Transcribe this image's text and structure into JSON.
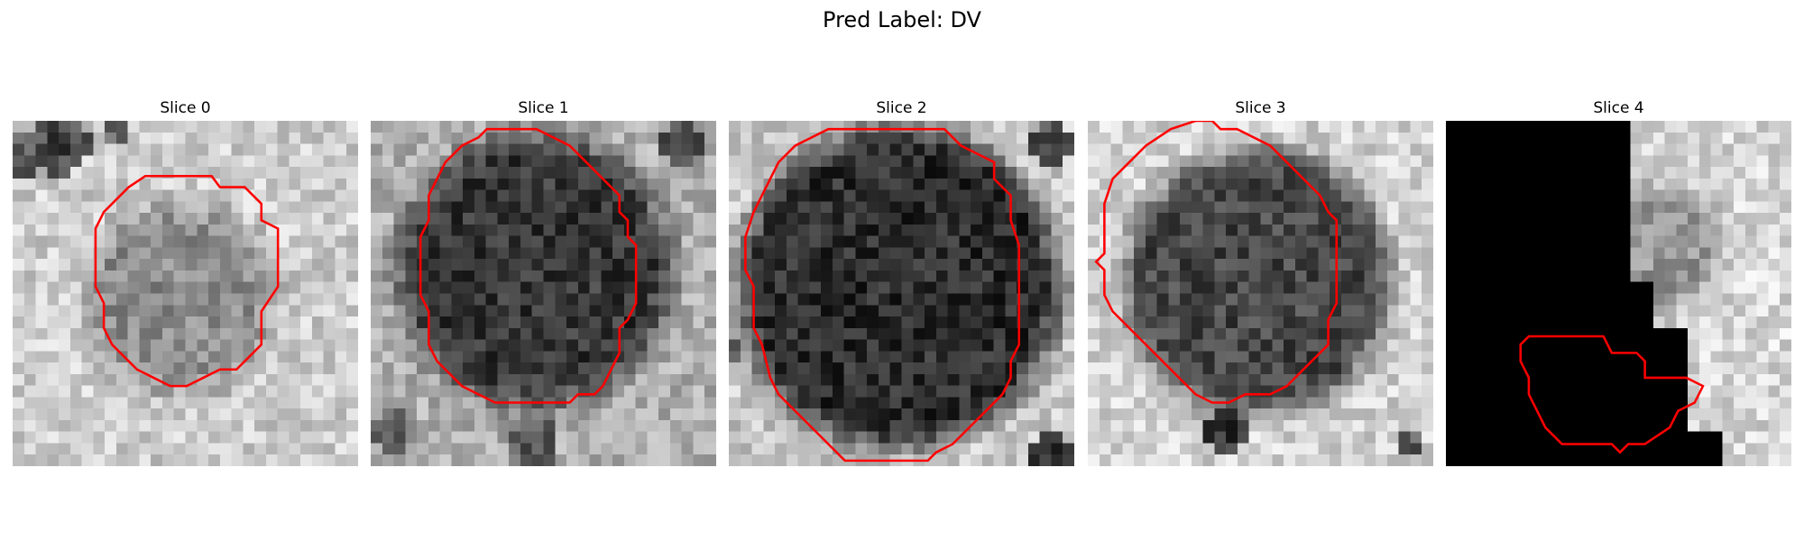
{
  "title": "Pred Label: DV",
  "panels": [
    {
      "title": "Slice 0"
    },
    {
      "title": "Slice 1"
    },
    {
      "title": "Slice 2"
    },
    {
      "title": "Slice 3"
    },
    {
      "title": "Slice 4"
    }
  ],
  "colors": {
    "contour": "#ff0000",
    "background": "#ffffff"
  }
}
